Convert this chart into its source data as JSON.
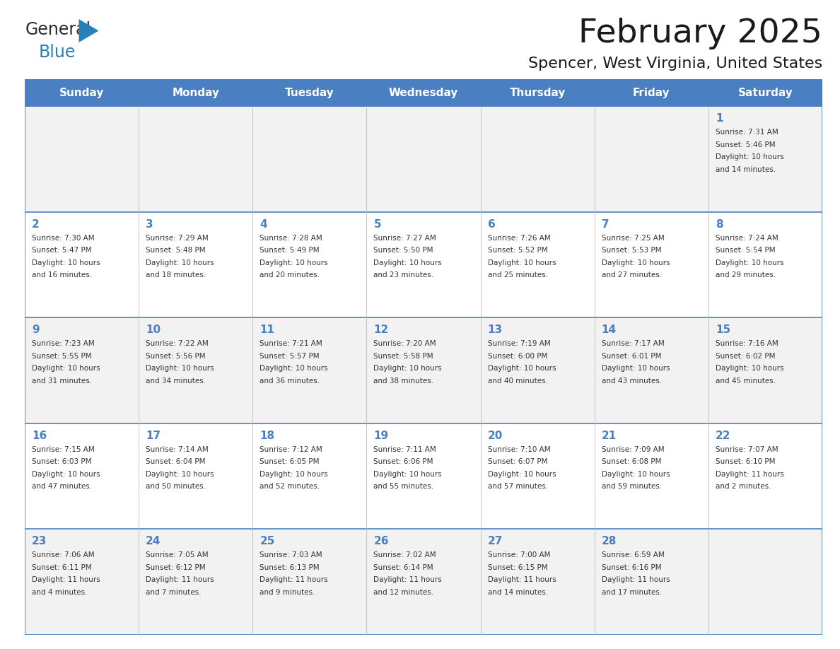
{
  "title": "February 2025",
  "subtitle": "Spencer, West Virginia, United States",
  "header_bg": "#4A7FC1",
  "header_text_color": "#FFFFFF",
  "cell_bg_even": "#F2F2F2",
  "cell_bg_odd": "#FFFFFF",
  "border_color": "#4A7FC1",
  "text_color": "#333333",
  "day_num_color": "#4A7FC1",
  "day_names": [
    "Sunday",
    "Monday",
    "Tuesday",
    "Wednesday",
    "Thursday",
    "Friday",
    "Saturday"
  ],
  "days": [
    {
      "day": 1,
      "col": 6,
      "row": 0,
      "sunrise": "7:31 AM",
      "sunset": "5:46 PM",
      "daylight_h": "10 hours",
      "daylight_m": "and 14 minutes."
    },
    {
      "day": 2,
      "col": 0,
      "row": 1,
      "sunrise": "7:30 AM",
      "sunset": "5:47 PM",
      "daylight_h": "10 hours",
      "daylight_m": "and 16 minutes."
    },
    {
      "day": 3,
      "col": 1,
      "row": 1,
      "sunrise": "7:29 AM",
      "sunset": "5:48 PM",
      "daylight_h": "10 hours",
      "daylight_m": "and 18 minutes."
    },
    {
      "day": 4,
      "col": 2,
      "row": 1,
      "sunrise": "7:28 AM",
      "sunset": "5:49 PM",
      "daylight_h": "10 hours",
      "daylight_m": "and 20 minutes."
    },
    {
      "day": 5,
      "col": 3,
      "row": 1,
      "sunrise": "7:27 AM",
      "sunset": "5:50 PM",
      "daylight_h": "10 hours",
      "daylight_m": "and 23 minutes."
    },
    {
      "day": 6,
      "col": 4,
      "row": 1,
      "sunrise": "7:26 AM",
      "sunset": "5:52 PM",
      "daylight_h": "10 hours",
      "daylight_m": "and 25 minutes."
    },
    {
      "day": 7,
      "col": 5,
      "row": 1,
      "sunrise": "7:25 AM",
      "sunset": "5:53 PM",
      "daylight_h": "10 hours",
      "daylight_m": "and 27 minutes."
    },
    {
      "day": 8,
      "col": 6,
      "row": 1,
      "sunrise": "7:24 AM",
      "sunset": "5:54 PM",
      "daylight_h": "10 hours",
      "daylight_m": "and 29 minutes."
    },
    {
      "day": 9,
      "col": 0,
      "row": 2,
      "sunrise": "7:23 AM",
      "sunset": "5:55 PM",
      "daylight_h": "10 hours",
      "daylight_m": "and 31 minutes."
    },
    {
      "day": 10,
      "col": 1,
      "row": 2,
      "sunrise": "7:22 AM",
      "sunset": "5:56 PM",
      "daylight_h": "10 hours",
      "daylight_m": "and 34 minutes."
    },
    {
      "day": 11,
      "col": 2,
      "row": 2,
      "sunrise": "7:21 AM",
      "sunset": "5:57 PM",
      "daylight_h": "10 hours",
      "daylight_m": "and 36 minutes."
    },
    {
      "day": 12,
      "col": 3,
      "row": 2,
      "sunrise": "7:20 AM",
      "sunset": "5:58 PM",
      "daylight_h": "10 hours",
      "daylight_m": "and 38 minutes."
    },
    {
      "day": 13,
      "col": 4,
      "row": 2,
      "sunrise": "7:19 AM",
      "sunset": "6:00 PM",
      "daylight_h": "10 hours",
      "daylight_m": "and 40 minutes."
    },
    {
      "day": 14,
      "col": 5,
      "row": 2,
      "sunrise": "7:17 AM",
      "sunset": "6:01 PM",
      "daylight_h": "10 hours",
      "daylight_m": "and 43 minutes."
    },
    {
      "day": 15,
      "col": 6,
      "row": 2,
      "sunrise": "7:16 AM",
      "sunset": "6:02 PM",
      "daylight_h": "10 hours",
      "daylight_m": "and 45 minutes."
    },
    {
      "day": 16,
      "col": 0,
      "row": 3,
      "sunrise": "7:15 AM",
      "sunset": "6:03 PM",
      "daylight_h": "10 hours",
      "daylight_m": "and 47 minutes."
    },
    {
      "day": 17,
      "col": 1,
      "row": 3,
      "sunrise": "7:14 AM",
      "sunset": "6:04 PM",
      "daylight_h": "10 hours",
      "daylight_m": "and 50 minutes."
    },
    {
      "day": 18,
      "col": 2,
      "row": 3,
      "sunrise": "7:12 AM",
      "sunset": "6:05 PM",
      "daylight_h": "10 hours",
      "daylight_m": "and 52 minutes."
    },
    {
      "day": 19,
      "col": 3,
      "row": 3,
      "sunrise": "7:11 AM",
      "sunset": "6:06 PM",
      "daylight_h": "10 hours",
      "daylight_m": "and 55 minutes."
    },
    {
      "day": 20,
      "col": 4,
      "row": 3,
      "sunrise": "7:10 AM",
      "sunset": "6:07 PM",
      "daylight_h": "10 hours",
      "daylight_m": "and 57 minutes."
    },
    {
      "day": 21,
      "col": 5,
      "row": 3,
      "sunrise": "7:09 AM",
      "sunset": "6:08 PM",
      "daylight_h": "10 hours",
      "daylight_m": "and 59 minutes."
    },
    {
      "day": 22,
      "col": 6,
      "row": 3,
      "sunrise": "7:07 AM",
      "sunset": "6:10 PM",
      "daylight_h": "11 hours",
      "daylight_m": "and 2 minutes."
    },
    {
      "day": 23,
      "col": 0,
      "row": 4,
      "sunrise": "7:06 AM",
      "sunset": "6:11 PM",
      "daylight_h": "11 hours",
      "daylight_m": "and 4 minutes."
    },
    {
      "day": 24,
      "col": 1,
      "row": 4,
      "sunrise": "7:05 AM",
      "sunset": "6:12 PM",
      "daylight_h": "11 hours",
      "daylight_m": "and 7 minutes."
    },
    {
      "day": 25,
      "col": 2,
      "row": 4,
      "sunrise": "7:03 AM",
      "sunset": "6:13 PM",
      "daylight_h": "11 hours",
      "daylight_m": "and 9 minutes."
    },
    {
      "day": 26,
      "col": 3,
      "row": 4,
      "sunrise": "7:02 AM",
      "sunset": "6:14 PM",
      "daylight_h": "11 hours",
      "daylight_m": "and 12 minutes."
    },
    {
      "day": 27,
      "col": 4,
      "row": 4,
      "sunrise": "7:00 AM",
      "sunset": "6:15 PM",
      "daylight_h": "11 hours",
      "daylight_m": "and 14 minutes."
    },
    {
      "day": 28,
      "col": 5,
      "row": 4,
      "sunrise": "6:59 AM",
      "sunset": "6:16 PM",
      "daylight_h": "11 hours",
      "daylight_m": "and 17 minutes."
    }
  ]
}
